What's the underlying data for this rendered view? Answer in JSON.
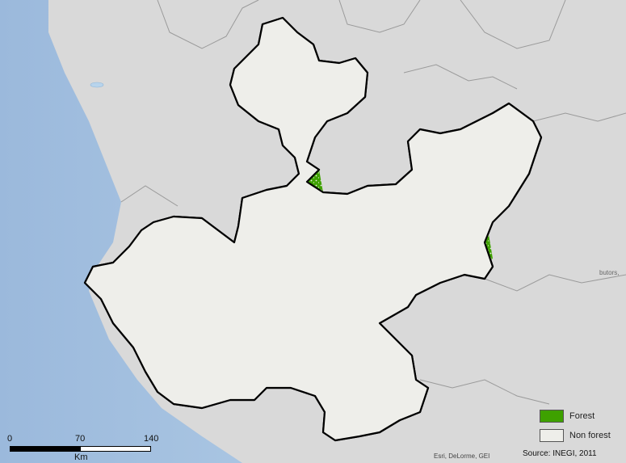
{
  "legend": {
    "forest": {
      "label": "Forest",
      "color": "#3ea100"
    },
    "nonforest": {
      "label": "Non forest",
      "color": "#eeeeea"
    }
  },
  "source": "Source: INEGI, 2011",
  "basemap_credits": "Esri, DeLorme, GEI",
  "edge_credit": "butors,",
  "scale": {
    "ticks": [
      "0",
      "70",
      "140"
    ],
    "unit": "Km"
  },
  "colors": {
    "ocean": "#a8c3df",
    "land": "#d7d7d7",
    "boundary": "#000000"
  }
}
